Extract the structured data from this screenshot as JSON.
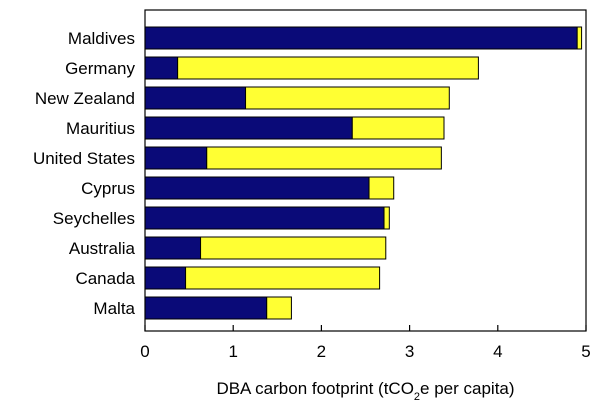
{
  "chart_data": {
    "type": "bar",
    "orientation": "horizontal",
    "stacked": true,
    "title": "",
    "xlabel_parts": {
      "pre": "DBA carbon footprint (tCO",
      "sub": "2",
      "post": "e per capita)"
    },
    "ylabel": "",
    "xlim": [
      0,
      5
    ],
    "xticks": [
      "0",
      "1",
      "2",
      "3",
      "4",
      "5"
    ],
    "grid": false,
    "legend": "none",
    "categories": [
      "Maldives",
      "Germany",
      "New Zealand",
      "Mauritius",
      "United States",
      "Cyprus",
      "Seychelles",
      "Australia",
      "Canada",
      "Malta"
    ],
    "series": [
      {
        "color": "#0a0a78",
        "values": [
          4.9,
          0.37,
          1.14,
          2.35,
          0.7,
          2.54,
          2.71,
          0.63,
          0.46,
          1.38
        ]
      },
      {
        "color": "#ffff33",
        "values": [
          0.05,
          3.41,
          2.31,
          1.04,
          2.66,
          0.28,
          0.06,
          2.1,
          2.2,
          0.28
        ]
      }
    ]
  }
}
